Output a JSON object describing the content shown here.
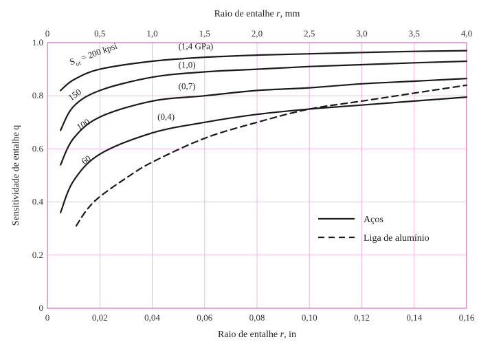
{
  "chart_data": {
    "type": "line",
    "title": "",
    "xlabel": "Raio de entalhe r, in",
    "x2label": "Raio de entalhe r, mm",
    "ylabel": "Sensitividade de entalhe q",
    "xlim": [
      0,
      0.16
    ],
    "x2lim": [
      0,
      4.0
    ],
    "ylim": [
      0,
      1.0
    ],
    "x_ticks": [
      "0",
      "0,02",
      "0,04",
      "0,06",
      "0,08",
      "0,10",
      "0,12",
      "0,14",
      "0,16"
    ],
    "x_tick_values": [
      0,
      0.02,
      0.04,
      0.06,
      0.08,
      0.1,
      0.12,
      0.14,
      0.16
    ],
    "x2_ticks": [
      "0",
      "0,5",
      "1,0",
      "1,5",
      "2,0",
      "2,5",
      "3,0",
      "3,5",
      "4,0"
    ],
    "x2_tick_values": [
      0,
      0.5,
      1.0,
      1.5,
      2.0,
      2.5,
      3.0,
      3.5,
      4.0
    ],
    "y_ticks": [
      "0",
      "0.2",
      "0.4",
      "0.6",
      "0.8",
      "1.0"
    ],
    "y_tick_values": [
      0,
      0.2,
      0.4,
      0.6,
      0.8,
      1.0
    ],
    "grid": true,
    "legend_position": "bottom-right",
    "legend": [
      {
        "label": "Aços",
        "style": "solid"
      },
      {
        "label": "Liga de alumínio",
        "style": "dashed"
      }
    ],
    "series": [
      {
        "style": "solid",
        "x": [
          0.005,
          0.01,
          0.02,
          0.04,
          0.06,
          0.08,
          0.1,
          0.12,
          0.14,
          0.16
        ],
        "y": [
          0.82,
          0.86,
          0.9,
          0.93,
          0.945,
          0.953,
          0.958,
          0.963,
          0.967,
          0.97
        ]
      },
      {
        "style": "solid",
        "x": [
          0.005,
          0.01,
          0.02,
          0.04,
          0.06,
          0.08,
          0.1,
          0.12,
          0.14,
          0.16
        ],
        "y": [
          0.67,
          0.76,
          0.82,
          0.87,
          0.89,
          0.9,
          0.91,
          0.917,
          0.924,
          0.93
        ]
      },
      {
        "style": "solid",
        "x": [
          0.005,
          0.01,
          0.02,
          0.04,
          0.06,
          0.08,
          0.1,
          0.12,
          0.14,
          0.16
        ],
        "y": [
          0.54,
          0.64,
          0.72,
          0.78,
          0.8,
          0.82,
          0.83,
          0.845,
          0.855,
          0.865
        ]
      },
      {
        "style": "solid",
        "x": [
          0.005,
          0.01,
          0.02,
          0.04,
          0.06,
          0.08,
          0.1,
          0.12,
          0.14,
          0.16
        ],
        "y": [
          0.36,
          0.48,
          0.58,
          0.66,
          0.7,
          0.73,
          0.75,
          0.765,
          0.78,
          0.795
        ]
      },
      {
        "style": "dashed",
        "x": [
          0.011,
          0.015,
          0.02,
          0.03,
          0.04,
          0.06,
          0.08,
          0.1,
          0.12,
          0.14,
          0.16
        ],
        "y": [
          0.31,
          0.37,
          0.42,
          0.49,
          0.55,
          0.64,
          0.7,
          0.75,
          0.78,
          0.81,
          0.84
        ]
      }
    ],
    "annotations": [
      {
        "text": "S",
        "sub": "ut",
        "rest": " = 200 kpsi",
        "x": 0.009,
        "y": 0.915,
        "rotate": -20
      },
      {
        "text": "150",
        "x": 0.009,
        "y": 0.78,
        "rotate": -35
      },
      {
        "text": "100",
        "x": 0.012,
        "y": 0.67,
        "rotate": -30
      },
      {
        "text": "60",
        "x": 0.014,
        "y": 0.54,
        "rotate": -35
      },
      {
        "text": "(1,4 GPa)",
        "x": 0.05,
        "y": 0.975
      },
      {
        "text": "(1,0)",
        "x": 0.05,
        "y": 0.905
      },
      {
        "text": "(0,7)",
        "x": 0.05,
        "y": 0.825
      },
      {
        "text": "(0,4)",
        "x": 0.042,
        "y": 0.71
      }
    ]
  }
}
